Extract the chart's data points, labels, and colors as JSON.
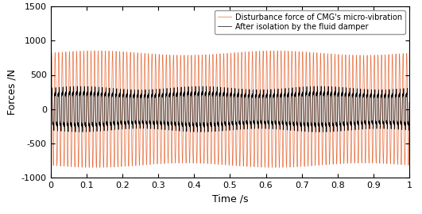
{
  "title": "",
  "xlabel": "Time /s",
  "ylabel": "Forces /N",
  "xlim": [
    0,
    1
  ],
  "ylim": [
    -1000,
    1500
  ],
  "yticks": [
    -1000,
    -500,
    0,
    500,
    1000,
    1500
  ],
  "xticks": [
    0,
    0.1,
    0.2,
    0.3,
    0.4,
    0.5,
    0.6,
    0.7,
    0.8,
    0.9,
    1.0
  ],
  "orange_color": "#E87040",
  "black_color": "#000000",
  "legend1": "Disturbance force of CMG's micro-vibration",
  "legend2": "After isolation by the fluid damper",
  "orange_freq": 100,
  "orange_amp": 820,
  "black_amp": 280,
  "sample_rate": 10000,
  "duration": 1.0,
  "background_color": "#ffffff",
  "linewidth_orange": 0.5,
  "linewidth_black": 0.5,
  "legend_fontsize": 7.0,
  "tick_labelsize": 8,
  "axis_labelsize": 9
}
